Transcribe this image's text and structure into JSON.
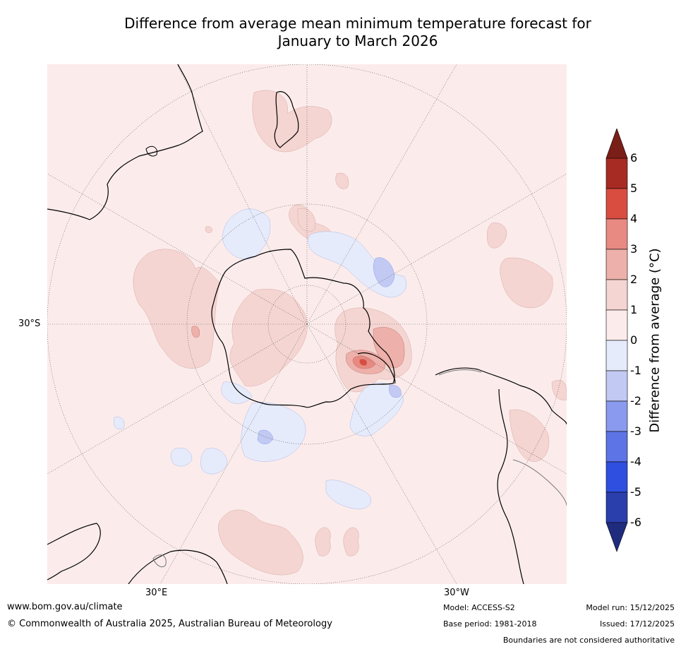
{
  "title_line1": "Difference from average mean minimum temperature forecast for",
  "title_line2": "January to March 2026",
  "map": {
    "lat_label": "30°S",
    "lon_label_east": "30°E",
    "lon_label_west": "30°W",
    "background_color": "#fbeceb",
    "land_outline_color": "#000000",
    "boundary_color": "#777777"
  },
  "colorbar": {
    "label": "Difference from average (°C)",
    "ticks": [
      "6",
      "5",
      "4",
      "3",
      "2",
      "1",
      "0",
      "-1",
      "-2",
      "-3",
      "-4",
      "-5",
      "-6"
    ],
    "colors": [
      "#a82b23",
      "#d94d40",
      "#e88a82",
      "#eeb0aa",
      "#f4d5d2",
      "#fbeceb",
      "#e6ebfb",
      "#c2caf3",
      "#8a9aee",
      "#5c74e6",
      "#2f4fe0",
      "#2a3fac"
    ],
    "over_color": "#7a1f17",
    "under_color": "#1f2c7e"
  },
  "footer": {
    "website": "www.bom.gov.au/climate",
    "copyright": "© Commonwealth of Australia 2025, Australian Bureau of Meteorology",
    "model": "Model: ACCESS-S2",
    "base_period": "Base period: 1981-2018",
    "model_run": "Model run: 15/12/2025",
    "issued": "Issued: 17/12/2025",
    "disclaimer": "Boundaries are not considered authoritative"
  }
}
